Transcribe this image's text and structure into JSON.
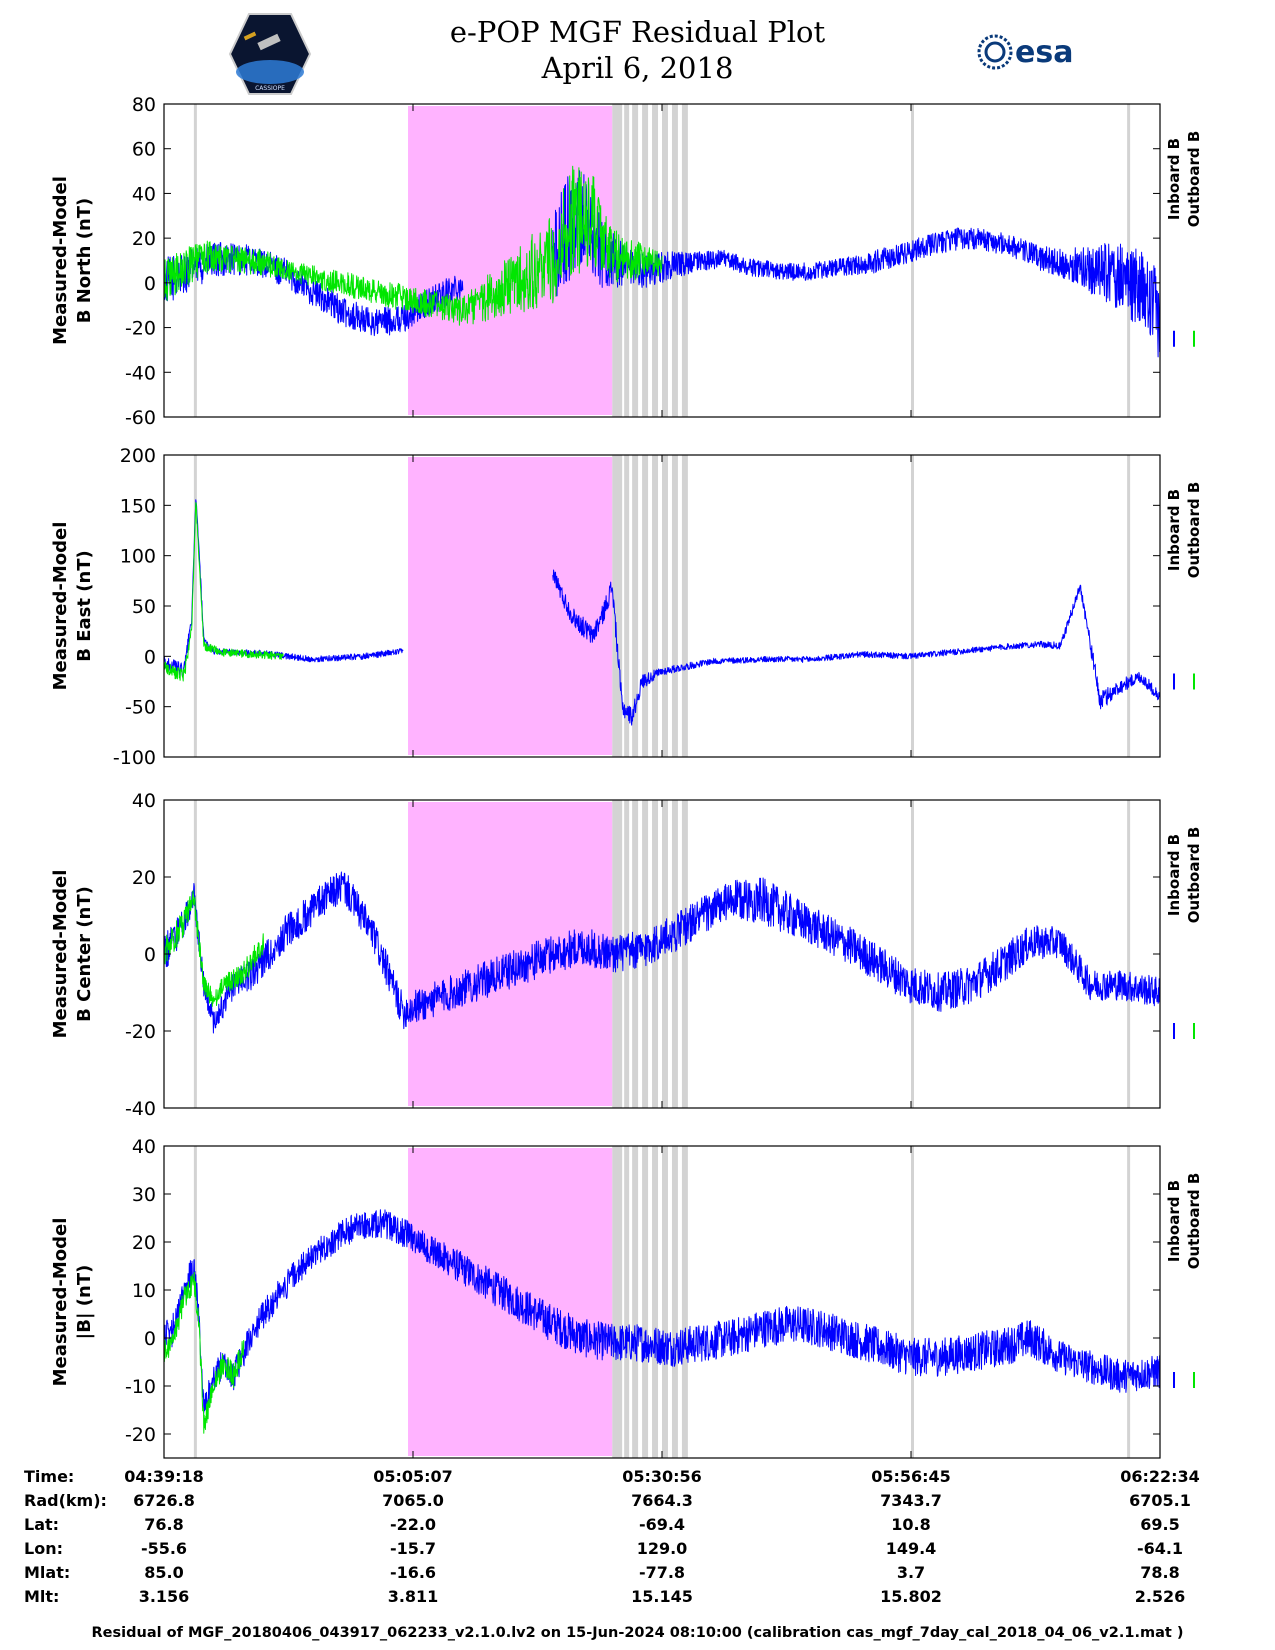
{
  "header": {
    "title_line1": "e-POP MGF Residual Plot",
    "title_line2": "April 6, 2018",
    "left_logo_text": "CASSIOPE",
    "right_logo_text": "esa"
  },
  "colors": {
    "inboard": "#0000ff",
    "outboard": "#00e600",
    "gap_fill": "#ffb3ff",
    "flag_fill": "#d3d3d3"
  },
  "chart_data": [
    {
      "type": "line",
      "title": "",
      "ylabel_line1": "Measured-Model",
      "ylabel_line2": "B North (nT)",
      "ylim": [
        -60,
        80
      ],
      "yticks": [
        80,
        60,
        40,
        20,
        0,
        -20,
        -40,
        -60
      ],
      "ytick_labels": [
        "80",
        "60",
        "40",
        "20",
        "0",
        "-20",
        "-40",
        "-60"
      ],
      "legend": [
        "Inboard B",
        "Outboard B"
      ],
      "legend_position": "right",
      "series": [
        {
          "name": "Inboard B",
          "x": [
            0.0,
            0.03,
            0.06,
            0.09,
            0.12,
            0.15,
            0.18,
            0.21,
            0.24,
            0.27,
            0.3,
            0.32,
            0.33,
            0.345,
            0.36,
            0.375,
            0.39,
            0.405,
            0.42,
            0.44,
            0.47,
            0.5,
            0.53,
            0.56,
            0.59,
            0.62,
            0.65,
            0.68,
            0.71,
            0.74,
            0.77,
            0.8,
            0.83,
            0.86,
            0.88,
            0.9,
            0.92,
            0.94,
            0.96,
            0.98,
            1.0
          ],
          "values": [
            0,
            7,
            11,
            10,
            5,
            -4,
            -13,
            -18,
            -16,
            -8,
            0,
            null,
            null,
            null,
            null,
            null,
            10,
            25,
            30,
            12,
            5,
            7,
            9,
            11,
            7,
            5,
            5,
            7,
            9,
            13,
            17,
            20,
            19,
            15,
            11,
            9,
            7,
            5,
            3,
            -3,
            -15
          ],
          "spread": [
            22,
            18,
            16,
            13,
            13,
            13,
            13,
            13,
            13,
            13,
            13,
            null,
            null,
            null,
            null,
            null,
            40,
            50,
            45,
            30,
            18,
            14,
            10,
            8,
            8,
            8,
            8,
            8,
            10,
            10,
            10,
            10,
            10,
            10,
            11,
            13,
            18,
            25,
            30,
            35,
            40
          ]
        },
        {
          "name": "Outboard B",
          "x": [
            0.0,
            0.02,
            0.04,
            0.06,
            0.08,
            0.1,
            0.12,
            0.3,
            0.39,
            0.41,
            0.43,
            0.45,
            0.5
          ],
          "values": [
            0,
            6,
            12,
            11,
            10,
            9,
            6,
            -13,
            10,
            28,
            28,
            12,
            8
          ],
          "spread": [
            20,
            18,
            15,
            12,
            12,
            12,
            10,
            13,
            40,
            50,
            45,
            25,
            10
          ]
        }
      ]
    },
    {
      "type": "line",
      "title": "",
      "ylabel_line1": "Measured-Model",
      "ylabel_line2": "B East (nT)",
      "ylim": [
        -100,
        200
      ],
      "yticks": [
        200,
        150,
        100,
        50,
        0,
        -50,
        -100
      ],
      "ytick_labels": [
        "200",
        "150",
        "100",
        "50",
        "0",
        "-50",
        "-100"
      ],
      "legend": [
        "Inboard B",
        "Outboard B"
      ],
      "legend_position": "right",
      "series": [
        {
          "name": "Inboard B",
          "x": [
            0.0,
            0.02,
            0.028,
            0.032,
            0.036,
            0.04,
            0.05,
            0.1,
            0.15,
            0.2,
            0.24,
            0.38,
            0.39,
            0.4,
            0.41,
            0.42,
            0.43,
            0.44,
            0.45,
            0.46,
            0.47,
            0.48,
            0.5,
            0.55,
            0.6,
            0.65,
            0.7,
            0.75,
            0.8,
            0.85,
            0.88,
            0.9,
            0.92,
            0.94,
            0.96,
            0.98,
            1.0
          ],
          "values": [
            -5,
            -15,
            40,
            160,
            90,
            15,
            5,
            3,
            -3,
            0,
            5,
            null,
            85,
            60,
            40,
            30,
            20,
            40,
            70,
            -50,
            -60,
            -25,
            -15,
            -5,
            -3,
            -3,
            2,
            0,
            5,
            10,
            12,
            10,
            70,
            -45,
            -30,
            -20,
            -40
          ],
          "spread": [
            12,
            15,
            10,
            5,
            10,
            8,
            6,
            6,
            6,
            6,
            6,
            null,
            15,
            18,
            18,
            20,
            20,
            20,
            20,
            20,
            18,
            15,
            8,
            6,
            6,
            6,
            6,
            6,
            6,
            6,
            6,
            8,
            10,
            20,
            14,
            12,
            12
          ]
        },
        {
          "name": "Outboard B",
          "x": [
            0.0,
            0.02,
            0.028,
            0.032,
            0.036,
            0.04,
            0.06,
            0.09,
            0.12
          ],
          "values": [
            -10,
            -20,
            30,
            155,
            80,
            10,
            4,
            2,
            0
          ],
          "spread": [
            12,
            15,
            10,
            5,
            10,
            8,
            8,
            8,
            8
          ]
        }
      ]
    },
    {
      "type": "line",
      "title": "",
      "ylabel_line1": "Measured-Model",
      "ylabel_line2": "B Center (nT)",
      "ylim": [
        -40,
        40
      ],
      "yticks": [
        40,
        20,
        0,
        -20,
        -40
      ],
      "ytick_labels": [
        "40",
        "20",
        "0",
        "-20",
        "-40"
      ],
      "legend": [
        "Inboard B",
        "Outboard B"
      ],
      "legend_position": "right",
      "series": [
        {
          "name": "Inboard B",
          "x": [
            0.0,
            0.02,
            0.03,
            0.04,
            0.05,
            0.07,
            0.09,
            0.12,
            0.15,
            0.18,
            0.21,
            0.24,
            0.39,
            0.42,
            0.45,
            0.48,
            0.51,
            0.54,
            0.57,
            0.6,
            0.63,
            0.66,
            0.69,
            0.72,
            0.75,
            0.78,
            0.81,
            0.84,
            0.87,
            0.9,
            0.93,
            0.96,
            1.0
          ],
          "values": [
            0,
            8,
            15,
            -8,
            -18,
            -8,
            -5,
            5,
            12,
            18,
            5,
            -15,
            0,
            2,
            0,
            1,
            5,
            10,
            14,
            14,
            10,
            6,
            2,
            -3,
            -8,
            -10,
            -8,
            -3,
            3,
            3,
            -8,
            -8,
            -10
          ],
          "spread": [
            10,
            8,
            7,
            6,
            6,
            7,
            8,
            9,
            9,
            9,
            9,
            9,
            10,
            10,
            10,
            10,
            10,
            10,
            10,
            12,
            11,
            10,
            10,
            10,
            10,
            10,
            10,
            10,
            9,
            8,
            8,
            8,
            8
          ]
        },
        {
          "name": "Outboard B",
          "x": [
            0.0,
            0.02,
            0.03,
            0.04,
            0.05,
            0.06,
            0.08,
            0.1
          ],
          "values": [
            0,
            8,
            15,
            -8,
            -12,
            -8,
            -5,
            3
          ],
          "spread": [
            8,
            7,
            6,
            5,
            5,
            5,
            6,
            6
          ]
        }
      ]
    },
    {
      "type": "line",
      "title": "",
      "ylabel_line1": "Measured-Model",
      "ylabel_line2": "|B| (nT)",
      "ylim": [
        -25,
        40
      ],
      "yticks": [
        40,
        30,
        20,
        10,
        0,
        -10,
        -20
      ],
      "ytick_labels": [
        "40",
        "30",
        "20",
        "10",
        "0",
        "-10",
        "-20"
      ],
      "legend": [
        "Inboard B",
        "Outboard B"
      ],
      "legend_position": "right",
      "series": [
        {
          "name": "Inboard B",
          "x": [
            0.0,
            0.01,
            0.02,
            0.03,
            0.035,
            0.04,
            0.05,
            0.06,
            0.07,
            0.08,
            0.1,
            0.13,
            0.16,
            0.19,
            0.22,
            0.24,
            0.39,
            0.42,
            0.45,
            0.48,
            0.51,
            0.54,
            0.57,
            0.6,
            0.63,
            0.66,
            0.69,
            0.72,
            0.75,
            0.78,
            0.81,
            0.84,
            0.87,
            0.9,
            0.93,
            0.96,
            1.0
          ],
          "values": [
            0,
            2,
            10,
            15,
            5,
            -15,
            -8,
            -5,
            -8,
            -3,
            5,
            13,
            19,
            23,
            24,
            22,
            3,
            0,
            -1,
            -1,
            -2,
            -1,
            0,
            2,
            3,
            2,
            0,
            -2,
            -4,
            -4,
            -3,
            -2,
            0,
            -4,
            -6,
            -8,
            -7
          ],
          "spread": [
            7,
            7,
            6,
            6,
            6,
            5,
            6,
            6,
            6,
            6,
            6,
            6,
            6,
            6,
            6,
            6,
            8,
            8,
            8,
            8,
            8,
            8,
            8,
            8,
            8,
            8,
            8,
            8,
            8,
            8,
            8,
            8,
            8,
            7,
            7,
            7,
            7
          ]
        },
        {
          "name": "Outboard B",
          "x": [
            0.0,
            0.01,
            0.02,
            0.03,
            0.035,
            0.04,
            0.05,
            0.06,
            0.07,
            0.08
          ],
          "values": [
            -3,
            0,
            8,
            12,
            3,
            -18,
            -10,
            -5,
            -8,
            -2
          ],
          "spread": [
            5,
            5,
            5,
            5,
            5,
            5,
            5,
            5,
            5,
            5
          ]
        }
      ]
    }
  ],
  "time_axis": {
    "xtick_labels": [
      "04:39:18",
      "05:05:07",
      "05:30:56",
      "05:56:45",
      "06:22:34"
    ],
    "xtick_positions": [
      0.0,
      0.25,
      0.5,
      0.75,
      1.0
    ],
    "gap_range": [
      0.245,
      0.45
    ],
    "flag_bands": [
      [
        0.03,
        0.033
      ],
      [
        0.45,
        0.46
      ],
      [
        0.462,
        0.467
      ],
      [
        0.47,
        0.476
      ],
      [
        0.48,
        0.486
      ],
      [
        0.49,
        0.496
      ],
      [
        0.5,
        0.506
      ],
      [
        0.51,
        0.516
      ],
      [
        0.52,
        0.526
      ],
      [
        0.75,
        0.753
      ],
      [
        0.967,
        0.97
      ]
    ]
  },
  "ephemeris": {
    "rows": [
      {
        "label": "Time:",
        "values": [
          "04:39:18",
          "05:05:07",
          "05:30:56",
          "05:56:45",
          "06:22:34"
        ]
      },
      {
        "label": "Rad(km):",
        "values": [
          "6726.8",
          "7065.0",
          "7664.3",
          "7343.7",
          "6705.1"
        ]
      },
      {
        "label": "Lat:",
        "values": [
          "76.8",
          "-22.0",
          "-69.4",
          "10.8",
          "69.5"
        ]
      },
      {
        "label": "Lon:",
        "values": [
          "-55.6",
          "-15.7",
          "129.0",
          "149.4",
          "-64.1"
        ]
      },
      {
        "label": "Mlat:",
        "values": [
          "85.0",
          "-16.6",
          "-77.8",
          "3.7",
          "78.8"
        ]
      },
      {
        "label": "Mlt:",
        "values": [
          "3.156",
          "3.811",
          "15.145",
          "15.802",
          "2.526"
        ]
      }
    ]
  },
  "footer": {
    "text": "Residual of MGF_20180406_043917_062233_v2.1.0.lv2 on 15-Jun-2024 08:10:00 (calibration cas_mgf_7day_cal_2018_04_06_v2.1.mat )"
  }
}
